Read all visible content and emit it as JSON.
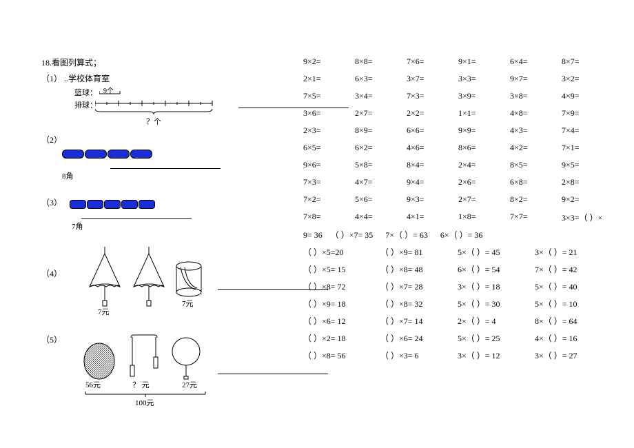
{
  "left": {
    "title": "18.看图列算式；",
    "items": {
      "1": {
        "num": "（1）",
        "text": "..学校体育室",
        "row1": "篮球：",
        "row1_val": "9个",
        "row2": "排球：",
        "unknown": "？个"
      },
      "2": {
        "num": "（2）",
        "price": "8角"
      },
      "3": {
        "num": "（3）",
        "price": "7角"
      },
      "4": {
        "num": "（4）",
        "p1": "7元",
        "p2": "7元"
      },
      "5": {
        "num": "（5）",
        "p1": "56元",
        "p2": "？ 元",
        "p3": "27元",
        "total": "100元"
      }
    }
  },
  "mult": {
    "rows": [
      [
        "9×2=",
        "8×8=",
        "7×6=",
        "9×1=",
        "6×4=",
        "8×7="
      ],
      [
        "2×1=",
        "6×3=",
        "3×7=",
        "3×3=",
        "9×7=",
        "3×2="
      ],
      [
        "7×5=",
        "3×4=",
        "7×3=",
        "3×9=",
        "3×8=",
        "4×9="
      ],
      [
        "3×6=",
        "2×7=",
        "2×2=",
        "1×1=",
        "4×8=",
        "7×9="
      ],
      [
        "2×3=",
        "8×9=",
        "6×6=",
        "9×9=",
        "4×3=",
        "7×4="
      ],
      [
        "6×5=",
        "6×2=",
        "4×6=",
        "8×6=",
        "4×2=",
        "7×1="
      ],
      [
        "9×6=",
        "5×8=",
        "8×4=",
        "2×4=",
        "8×5=",
        "9×5="
      ],
      [
        "7×3=",
        "4×7=",
        "9×4=",
        "2×6=",
        "6×8=",
        "2×8="
      ],
      [
        "7×2=",
        "5×6=",
        "9×3=",
        "2×7=",
        "8×2=",
        "9×2="
      ]
    ],
    "special_row": [
      "7×8=",
      "4×4=",
      "4×1=",
      "1×8=",
      "7×7=",
      "3×3=（ ）×"
    ],
    "special_line": "9= 36    （ ）×7= 35      7×（ ）= 63      6×（ ）= 36",
    "fill_rows": [
      [
        "（ ）×5=20",
        "（ ）×9= 81",
        "5×（ ）= 45",
        "3×（ ）= 21"
      ],
      [
        "（ ）×5= 15",
        "（ ）×8= 48",
        "6×（ ）= 54",
        "7×（ ）= 42"
      ],
      [
        "（ ）×8= 72",
        "（ ）×7= 28",
        "3×（ ）= 18",
        "5×（ ）= 40"
      ],
      [
        "（ ）×9= 18",
        "（ ）×8= 32",
        "5×（ ）= 30",
        "5×（ ）= 10"
      ],
      [
        "（ ）×6= 12",
        "（ ）×7= 14",
        "2×（ ）= 4",
        "8×（ ）= 64"
      ],
      [
        "（ ）×2= 18",
        "（ ）×6= 24",
        "5×（ ）= 25",
        "4×（ ）= 16"
      ],
      [
        "（ ）×8= 56",
        "（ ）×3= 6",
        "3×（ ）= 12",
        "3×（ ）= 27"
      ]
    ]
  },
  "colors": {
    "pill": "#1a2ed8",
    "line": "#000000",
    "bg": "#ffffff"
  }
}
